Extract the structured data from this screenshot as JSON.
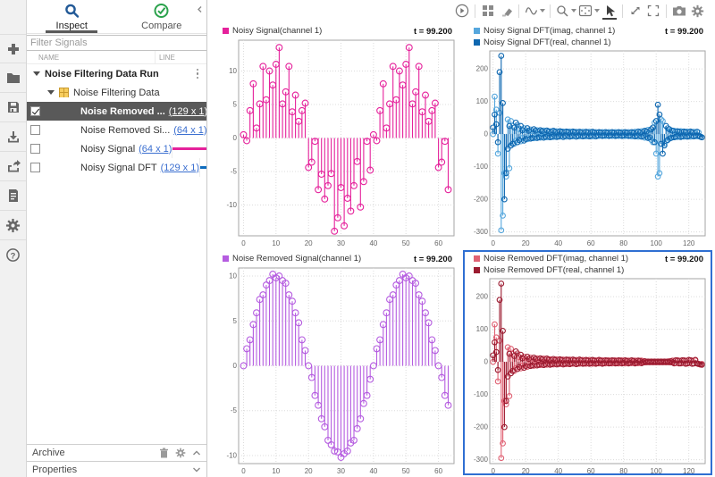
{
  "sidebar": {
    "tabs": {
      "inspect": "Inspect",
      "compare": "Compare"
    },
    "filter_placeholder": "Filter Signals",
    "columns": {
      "name": "NAME",
      "line": "LINE"
    },
    "run_label": "Noise Filtering Data Run",
    "group_label": "Noise Filtering Data",
    "signals": [
      {
        "label": "Noise Removed ...",
        "dims": "(129 x 1)",
        "checked": true,
        "selected": true,
        "color": "#9e1b32",
        "dashed": true
      },
      {
        "label": "Noise Removed Si...",
        "dims": "(64 x 1)",
        "checked": false,
        "selected": false,
        "color": "#b55ce0",
        "dashed": false
      },
      {
        "label": "Noisy Signal",
        "dims": "(64 x 1)",
        "checked": false,
        "selected": false,
        "color": "#e5219b",
        "dashed": false
      },
      {
        "label": "Noisy Signal DFT",
        "dims": "(129 x 1)",
        "checked": false,
        "selected": false,
        "color": "#0f6cbd",
        "dashed": false
      }
    ],
    "archive_label": "Archive",
    "properties_label": "Properties"
  },
  "toolbar_icons": [
    "replay",
    "layout-grid",
    "eraser",
    "signal-wave",
    "zoom",
    "fit-to-view",
    "cursor",
    "expand",
    "fullscreen",
    "snapshot",
    "settings"
  ],
  "colors": {
    "selection_border": "#2f6fd2",
    "inspect_icon": "#235a97",
    "compare_icon": "#2ba24c",
    "selected_row_bg": "#595959"
  },
  "charts": [
    {
      "type": "stem",
      "time_label": "t = 99.200",
      "legend": [
        {
          "label": "Noisy Signal(channel 1)",
          "color": "#e5219b"
        }
      ],
      "xlim": [
        -1.5,
        64.8
      ],
      "ylim": [
        -14.6,
        14.6
      ],
      "x_ticks": [
        0,
        10,
        20,
        30,
        40,
        50,
        60
      ],
      "y_ticks": [
        -10,
        -5,
        0,
        5,
        10
      ],
      "marker_r": 3.4,
      "series": [
        {
          "name": "Noisy Signal(channel 1)",
          "color": "#e5219b",
          "values": [
            0.5,
            -0.4,
            4.1,
            8.1,
            1.5,
            5.1,
            10.7,
            5.7,
            10,
            7.9,
            11,
            13.5,
            5.1,
            6.9,
            10.7,
            3.9,
            6.4,
            2.5,
            4.1,
            5.2,
            -4.4,
            -3.6,
            -0.5,
            -7.7,
            -5.4,
            -9.1,
            -7.1,
            -5.3,
            -13.9,
            -11.9,
            -7.4,
            -13.1,
            -9,
            -10.9,
            -7.1,
            -3.5,
            -10.3,
            -6.5,
            -0.5,
            -4.8,
            0.5,
            -0.4,
            4.1,
            8.1,
            1.5,
            5.1,
            10.7,
            5.7,
            10,
            7.9,
            11,
            13.5,
            5.1,
            6.9,
            10.7,
            3.9,
            6.4,
            2.5,
            4.1,
            5.2,
            -4.4,
            -3.6,
            -0.5,
            -7.7
          ]
        }
      ]
    },
    {
      "type": "stem",
      "time_label": "t = 99.200",
      "legend": [
        {
          "label": "Noisy Signal DFT(imag, channel 1)",
          "color": "#56a7dd"
        },
        {
          "label": "Noisy Signal DFT(real, channel 1)",
          "color": "#0e67b0"
        }
      ],
      "xlim": [
        -2,
        130
      ],
      "ylim": [
        -312,
        255
      ],
      "x_ticks": [
        0,
        20,
        40,
        60,
        80,
        100,
        120
      ],
      "y_ticks": [
        -300,
        -200,
        -100,
        0,
        100,
        200
      ],
      "marker_r": 2.8,
      "series": [
        {
          "name": "Noisy Signal DFT(imag, channel 1)",
          "color": "#56a7dd",
          "values": [
            0,
            115,
            75,
            -60,
            65,
            -295,
            -250,
            -120,
            -130,
            45,
            -105,
            40,
            25,
            -30,
            -20,
            28,
            15,
            -22,
            -12,
            18,
            12,
            -16,
            -10,
            14,
            9,
            -13,
            -9,
            12,
            8,
            -11,
            -8,
            11,
            7,
            -10,
            -7,
            9,
            7,
            -9,
            -6,
            9,
            6,
            -8,
            -6,
            8,
            6,
            -8,
            -5,
            8,
            5,
            -7,
            -5,
            7,
            5,
            -7,
            -5,
            7,
            5,
            -7,
            -5,
            7,
            5,
            -7,
            -4,
            6,
            4,
            -6,
            -4,
            6,
            4,
            -6,
            -4,
            6,
            4,
            -6,
            -4,
            6,
            4,
            -6,
            -4,
            6,
            4,
            -6,
            -4,
            6,
            4,
            -7,
            -5,
            7,
            5,
            -8,
            -6,
            9,
            7,
            -11,
            -9,
            13,
            11,
            -18,
            -25,
            35,
            -60,
            -130,
            -120,
            45,
            40,
            -30,
            -22,
            18,
            -14,
            12,
            -10,
            10,
            8,
            -9,
            -7,
            9,
            7,
            -8,
            -6,
            8,
            6,
            -8,
            -5,
            7,
            5,
            -7,
            5,
            -8,
            -10
          ]
        },
        {
          "name": "Noisy Signal DFT(real, channel 1)",
          "color": "#0e67b0",
          "values": [
            20,
            60,
            30,
            -25,
            190,
            240,
            95,
            -200,
            -120,
            -45,
            25,
            -35,
            -30,
            20,
            35,
            -25,
            -18,
            25,
            12,
            -20,
            -15,
            18,
            10,
            -14,
            -12,
            15,
            10,
            -12,
            -10,
            12,
            9,
            -11,
            -8,
            11,
            8,
            -10,
            -8,
            10,
            7,
            -9,
            -7,
            9,
            7,
            -9,
            -6,
            8,
            6,
            -8,
            -6,
            8,
            6,
            -8,
            -5,
            7,
            5,
            -7,
            -5,
            7,
            5,
            -7,
            -5,
            7,
            5,
            -7,
            -4,
            6,
            5,
            -6,
            -4,
            6,
            4,
            -6,
            -4,
            6,
            4,
            -6,
            -4,
            6,
            4,
            -6,
            -4,
            6,
            4,
            -6,
            -4,
            6,
            4,
            -7,
            -5,
            8,
            5,
            -8,
            -6,
            10,
            8,
            -12,
            -10,
            15,
            20,
            -25,
            40,
            90,
            60,
            -30,
            -60,
            -35,
            25,
            -18,
            15,
            -12,
            10,
            -10,
            -8,
            9,
            7,
            -9,
            -7,
            8,
            6,
            -8,
            -6,
            8,
            5,
            -7,
            -5,
            7,
            -5,
            -8,
            -10
          ]
        }
      ]
    },
    {
      "type": "stem",
      "time_label": "t = 99.200",
      "legend": [
        {
          "label": "Noise Removed Signal(channel 1)",
          "color": "#b55ce0"
        }
      ],
      "xlim": [
        -1.5,
        64.8
      ],
      "ylim": [
        -10.9,
        10.9
      ],
      "x_ticks": [
        0,
        10,
        20,
        30,
        40,
        50,
        60
      ],
      "y_ticks": [
        -10,
        -5,
        0,
        5,
        10
      ],
      "marker_r": 3.4,
      "series": [
        {
          "name": "Noise Removed Signal(channel 1)",
          "color": "#b55ce0",
          "values": [
            0,
            1.9,
            2.9,
            4.6,
            5.9,
            7.4,
            7.9,
            9,
            9.5,
            10.2,
            9.8,
            10,
            9.5,
            9.2,
            7.9,
            7.2,
            5.9,
            4.8,
            2.9,
            1.7,
            0,
            -1.3,
            -3.3,
            -4.4,
            -5.9,
            -6.8,
            -8.3,
            -8.8,
            -9.5,
            -9.6,
            -10.2,
            -9.8,
            -9.5,
            -8.6,
            -8.3,
            -7,
            -5.9,
            -4.2,
            -3.3,
            -1.5,
            0,
            1.9,
            2.9,
            4.6,
            5.9,
            7.4,
            7.9,
            9,
            9.5,
            10.2,
            9.8,
            10,
            9.5,
            9.2,
            7.9,
            7.2,
            5.9,
            4.8,
            2.9,
            1.7,
            0,
            -1.3,
            -3.3,
            -4.4
          ]
        }
      ]
    },
    {
      "type": "stem",
      "time_label": "t = 99.200",
      "selected": true,
      "legend": [
        {
          "label": "Noise Removed DFT(imag, channel 1)",
          "color": "#e06274"
        },
        {
          "label": "Noise Removed DFT(real, channel 1)",
          "color": "#9b1b30"
        }
      ],
      "xlim": [
        -2,
        130
      ],
      "ylim": [
        -312,
        255
      ],
      "x_ticks": [
        0,
        20,
        40,
        60,
        80,
        100,
        120
      ],
      "y_ticks": [
        -300,
        -200,
        -100,
        0,
        100,
        200
      ],
      "marker_r": 2.8,
      "series": [
        {
          "name": "Noise Removed DFT(imag, channel 1)",
          "color": "#e06274",
          "values": [
            0,
            115,
            75,
            -60,
            65,
            -295,
            -250,
            -120,
            -130,
            45,
            -105,
            40,
            24,
            -28,
            -19,
            26,
            14,
            -20,
            -11,
            16,
            11,
            -15,
            -9,
            13,
            8,
            -12,
            -8,
            11,
            7,
            -10,
            -7,
            10,
            7,
            -9,
            -6,
            8,
            6,
            -8,
            -6,
            8,
            5,
            -7,
            -5,
            7,
            5,
            -7,
            -5,
            7,
            5,
            -6,
            -4,
            6,
            4,
            -6,
            -4,
            6,
            4,
            -6,
            -4,
            6,
            4,
            -6,
            -4,
            5,
            4,
            -5,
            -4,
            5,
            4,
            -5,
            -3,
            5,
            3,
            -5,
            -3,
            5,
            3,
            -5,
            -3,
            5,
            3,
            -5,
            -3,
            4,
            3,
            -4,
            -3,
            4,
            3,
            -4,
            -3,
            4,
            2,
            -2,
            1,
            -1,
            1,
            -1,
            1,
            -1,
            1,
            -1,
            1,
            -1,
            1,
            -1,
            1,
            -1,
            2,
            -2,
            4,
            -5,
            -4,
            5,
            4,
            -5,
            -4,
            5,
            4,
            -5,
            -4,
            5,
            4,
            -5,
            4,
            -5,
            -7,
            -8,
            -6
          ]
        },
        {
          "name": "Noise Removed DFT(real, channel 1)",
          "color": "#9b1b30",
          "values": [
            20,
            60,
            30,
            -25,
            190,
            240,
            95,
            -200,
            -120,
            -45,
            25,
            -35,
            -28,
            18,
            32,
            -22,
            -16,
            22,
            11,
            -18,
            -13,
            16,
            9,
            -13,
            -11,
            13,
            9,
            -11,
            -9,
            11,
            8,
            -10,
            -7,
            10,
            7,
            -9,
            -7,
            9,
            6,
            -8,
            -6,
            8,
            6,
            -8,
            -6,
            7,
            6,
            -7,
            -5,
            7,
            5,
            -7,
            -5,
            7,
            5,
            -6,
            -5,
            6,
            4,
            -6,
            -4,
            6,
            4,
            -6,
            -4,
            6,
            4,
            -6,
            -4,
            5,
            4,
            -5,
            -4,
            5,
            4,
            -5,
            -4,
            5,
            4,
            -5,
            -3,
            5,
            3,
            -5,
            -3,
            5,
            3,
            -5,
            -3,
            4,
            3,
            -4,
            -2,
            2,
            -1,
            1,
            -1,
            1,
            -1,
            1,
            -1,
            1,
            -1,
            1,
            -1,
            1,
            -1,
            1,
            -1,
            2,
            -2,
            -4,
            5,
            4,
            -5,
            -4,
            5,
            4,
            -6,
            -5,
            6,
            5,
            -6,
            -5,
            6,
            -5,
            -6,
            -8,
            -9
          ]
        }
      ]
    }
  ]
}
